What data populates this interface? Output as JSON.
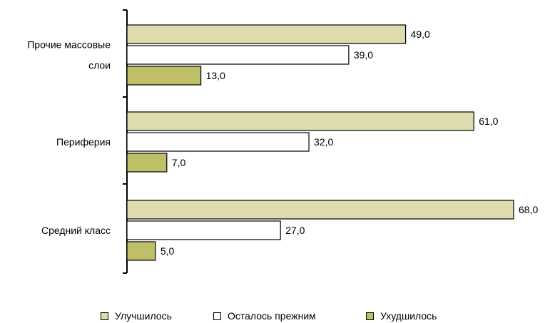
{
  "chart_data": {
    "type": "bar",
    "orientation": "horizontal",
    "categories": [
      [
        "Прочие массовые",
        "слои"
      ],
      [
        "Периферия"
      ],
      [
        "Средний класс"
      ]
    ],
    "series": [
      {
        "name": "Улучшилось",
        "color": "#dedcae",
        "values": [
          49.0,
          61.0,
          68.0
        ]
      },
      {
        "name": "Осталось прежним",
        "color": "#ffffff",
        "values": [
          39.0,
          32.0,
          27.0
        ]
      },
      {
        "name": "Ухудшилось",
        "color": "#bfbf67",
        "values": [
          13.0,
          7.0,
          5.0
        ]
      }
    ],
    "data_labels": [
      [
        "49,0",
        "61,0",
        "68,0"
      ],
      [
        "39,0",
        "32,0",
        "27,0"
      ],
      [
        "13,0",
        "7,0",
        "5,0"
      ]
    ],
    "xlim": [
      0,
      68
    ],
    "grid": false,
    "legend_position": "bottom"
  }
}
